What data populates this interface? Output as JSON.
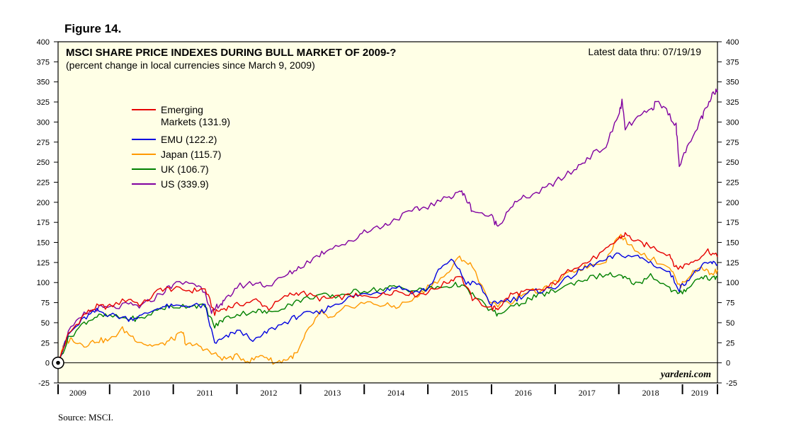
{
  "figure_label": "Figure 14.",
  "source": "Source: MSCI.",
  "chart_data": {
    "type": "line",
    "title": "MSCI SHARE PRICE INDEXES DURING BULL MARKET OF 2009-?",
    "subtitle": "(percent change in local currencies since March 9, 2009)",
    "latest": "Latest data thru: 07/19/19",
    "watermark": "yardeni.com",
    "ylim": [
      -25,
      400
    ],
    "yticks": [
      "400",
      "375",
      "350",
      "325",
      "300",
      "275",
      "250",
      "225",
      "200",
      "175",
      "150",
      "125",
      "100",
      "75",
      "50",
      "25",
      "0",
      "-25"
    ],
    "ytick_values": [
      400,
      375,
      350,
      325,
      300,
      275,
      250,
      225,
      200,
      175,
      150,
      125,
      100,
      75,
      50,
      25,
      0,
      -25
    ],
    "xlim": [
      2009.19,
      2019.55
    ],
    "xticks": [
      "2009",
      "2010",
      "2011",
      "2012",
      "2013",
      "2014",
      "2015",
      "2016",
      "2017",
      "2018",
      "2019"
    ],
    "xtick_centers": [
      2009.5,
      2010.5,
      2011.5,
      2012.5,
      2013.5,
      2014.5,
      2015.5,
      2016.5,
      2017.5,
      2018.5,
      2019.27
    ],
    "year_boundaries": [
      2010,
      2011,
      2012,
      2013,
      2014,
      2015,
      2016,
      2017,
      2018,
      2019
    ],
    "legend_position": "top-left",
    "series": [
      {
        "name": "Emerging Markets (131.9)",
        "legend_lines": [
          "Emerging",
          "Markets (131.9)"
        ],
        "color": "#e60000",
        "x": [
          2009.19,
          2009.35,
          2009.6,
          2009.8,
          2010.0,
          2010.3,
          2010.5,
          2010.8,
          2011.0,
          2011.3,
          2011.5,
          2011.65,
          2011.8,
          2012.0,
          2012.3,
          2012.5,
          2012.8,
          2013.0,
          2013.3,
          2013.5,
          2013.8,
          2014.0,
          2014.3,
          2014.5,
          2014.8,
          2015.0,
          2015.3,
          2015.5,
          2015.7,
          2016.0,
          2016.1,
          2016.3,
          2016.5,
          2016.8,
          2017.0,
          2017.3,
          2017.5,
          2017.8,
          2018.0,
          2018.1,
          2018.3,
          2018.5,
          2018.8,
          2018.9,
          2019.0,
          2019.2,
          2019.4,
          2019.55
        ],
        "y": [
          0,
          35,
          60,
          70,
          70,
          80,
          72,
          92,
          92,
          90,
          92,
          62,
          68,
          72,
          78,
          68,
          84,
          88,
          80,
          80,
          84,
          82,
          85,
          90,
          85,
          88,
          100,
          110,
          80,
          68,
          68,
          85,
          88,
          90,
          100,
          120,
          125,
          140,
          155,
          160,
          150,
          145,
          135,
          118,
          120,
          128,
          140,
          131.9
        ]
      },
      {
        "name": "EMU (122.2)",
        "legend_lines": [
          "EMU (122.2)"
        ],
        "color": "#0000e0",
        "x": [
          2009.19,
          2009.35,
          2009.6,
          2009.8,
          2010.0,
          2010.3,
          2010.5,
          2010.8,
          2011.0,
          2011.3,
          2011.5,
          2011.65,
          2011.8,
          2012.0,
          2012.3,
          2012.5,
          2012.8,
          2013.0,
          2013.3,
          2013.5,
          2013.8,
          2014.0,
          2014.3,
          2014.5,
          2014.8,
          2015.0,
          2015.2,
          2015.4,
          2015.6,
          2015.8,
          2016.0,
          2016.1,
          2016.4,
          2016.6,
          2016.8,
          2017.0,
          2017.3,
          2017.5,
          2017.8,
          2018.0,
          2018.3,
          2018.5,
          2018.8,
          2018.95,
          2019.1,
          2019.3,
          2019.45,
          2019.55
        ],
        "y": [
          0,
          35,
          55,
          65,
          60,
          55,
          58,
          70,
          70,
          72,
          70,
          25,
          30,
          40,
          28,
          40,
          52,
          60,
          62,
          72,
          82,
          86,
          90,
          95,
          88,
          92,
          118,
          128,
          100,
          98,
          72,
          76,
          80,
          88,
          90,
          95,
          110,
          120,
          128,
          135,
          132,
          125,
          112,
          92,
          105,
          120,
          125,
          122.2
        ]
      },
      {
        "name": "Japan (115.7)",
        "legend_lines": [
          "Japan (115.7)"
        ],
        "color": "#ff9900",
        "x": [
          2009.19,
          2009.3,
          2009.4,
          2009.6,
          2009.8,
          2010.0,
          2010.2,
          2010.4,
          2010.6,
          2010.8,
          2011.0,
          2011.15,
          2011.2,
          2011.4,
          2011.6,
          2011.8,
          2012.0,
          2012.2,
          2012.4,
          2012.6,
          2012.8,
          2012.95,
          2013.1,
          2013.3,
          2013.5,
          2013.7,
          2014.0,
          2014.3,
          2014.5,
          2014.8,
          2015.0,
          2015.3,
          2015.5,
          2015.7,
          2016.0,
          2016.3,
          2016.5,
          2016.8,
          2017.0,
          2017.3,
          2017.5,
          2017.8,
          2018.0,
          2018.2,
          2018.5,
          2018.8,
          2018.95,
          2019.1,
          2019.3,
          2019.45,
          2019.55
        ],
        "y": [
          0,
          25,
          30,
          22,
          28,
          28,
          42,
          30,
          22,
          22,
          30,
          38,
          22,
          22,
          12,
          5,
          8,
          2,
          10,
          0,
          5,
          12,
          38,
          62,
          55,
          68,
          75,
          72,
          70,
          80,
          95,
          110,
          132,
          120,
          72,
          75,
          88,
          90,
          100,
          115,
          120,
          128,
          160,
          145,
          130,
          120,
          95,
          108,
          120,
          110,
          115.7
        ]
      },
      {
        "name": "UK (106.7)",
        "legend_lines": [
          "UK (106.7)"
        ],
        "color": "#008000",
        "x": [
          2009.19,
          2009.35,
          2009.6,
          2009.8,
          2010.0,
          2010.3,
          2010.5,
          2010.8,
          2011.0,
          2011.3,
          2011.5,
          2011.65,
          2011.8,
          2012.0,
          2012.3,
          2012.5,
          2012.8,
          2013.0,
          2013.3,
          2013.5,
          2013.8,
          2014.0,
          2014.3,
          2014.5,
          2014.8,
          2015.0,
          2015.3,
          2015.5,
          2015.7,
          2016.0,
          2016.1,
          2016.4,
          2016.6,
          2016.8,
          2017.0,
          2017.3,
          2017.5,
          2017.8,
          2018.0,
          2018.1,
          2018.3,
          2018.5,
          2018.8,
          2018.95,
          2019.1,
          2019.3,
          2019.45,
          2019.55
        ],
        "y": [
          0,
          30,
          50,
          58,
          58,
          55,
          55,
          68,
          70,
          72,
          70,
          45,
          55,
          60,
          65,
          62,
          72,
          78,
          85,
          82,
          88,
          90,
          92,
          95,
          90,
          92,
          95,
          98,
          85,
          65,
          60,
          72,
          80,
          85,
          90,
          100,
          105,
          110,
          108,
          105,
          98,
          110,
          92,
          85,
          95,
          108,
          105,
          106.7
        ]
      },
      {
        "name": "US (339.9)",
        "legend_lines": [
          "US (339.9)"
        ],
        "color": "#8000a0",
        "x": [
          2009.19,
          2009.35,
          2009.6,
          2009.8,
          2010.0,
          2010.3,
          2010.5,
          2010.8,
          2011.0,
          2011.3,
          2011.5,
          2011.6,
          2011.7,
          2011.8,
          2012.0,
          2012.3,
          2012.5,
          2012.8,
          2013.0,
          2013.3,
          2013.5,
          2013.8,
          2014.0,
          2014.3,
          2014.5,
          2014.8,
          2015.0,
          2015.3,
          2015.5,
          2015.6,
          2015.7,
          2016.0,
          2016.1,
          2016.3,
          2016.5,
          2016.8,
          2017.0,
          2017.3,
          2017.5,
          2017.8,
          2018.0,
          2018.05,
          2018.1,
          2018.3,
          2018.5,
          2018.6,
          2018.75,
          2018.9,
          2018.95,
          2019.1,
          2019.3,
          2019.4,
          2019.5,
          2019.55
        ],
        "y": [
          0,
          38,
          60,
          68,
          68,
          72,
          70,
          86,
          98,
          100,
          90,
          60,
          72,
          75,
          95,
          100,
          96,
          110,
          120,
          135,
          145,
          150,
          165,
          170,
          180,
          190,
          195,
          205,
          215,
          205,
          190,
          182,
          170,
          195,
          205,
          215,
          225,
          240,
          255,
          270,
          310,
          325,
          292,
          305,
          315,
          325,
          315,
          295,
          248,
          270,
          305,
          320,
          338,
          339.9
        ]
      }
    ]
  }
}
